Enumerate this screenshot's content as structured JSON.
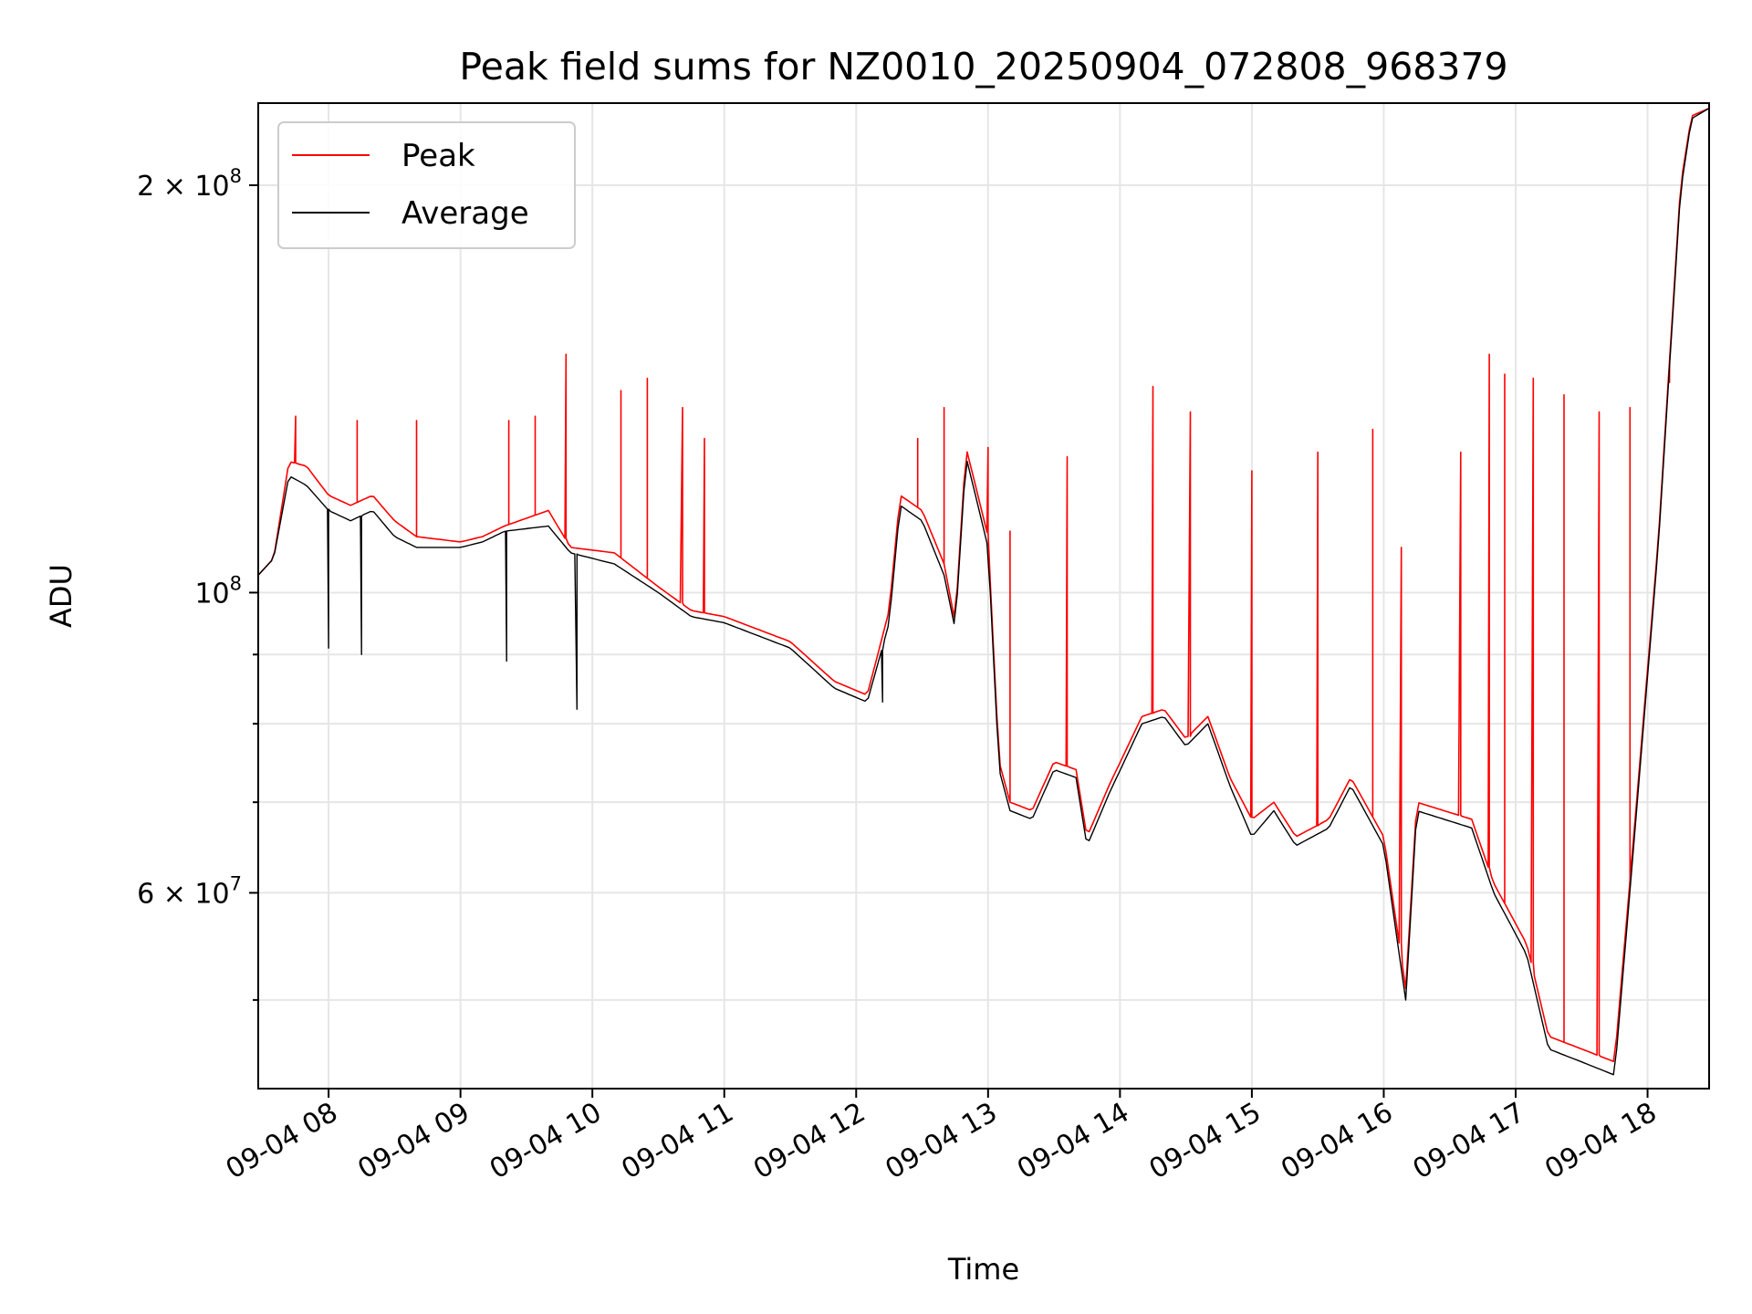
{
  "chart_data": {
    "type": "line",
    "title": "Peak field sums for NZ0010_20250904_072808_968379",
    "xlabel": "Time",
    "ylabel": "ADU",
    "x_scale": "time",
    "y_scale": "log",
    "xlim": [
      "09-04 07:28",
      "09-04 18:28"
    ],
    "ylim": [
      43000000,
      230000000
    ],
    "x_ticks": [
      "09-04 08",
      "09-04 09",
      "09-04 10",
      "09-04 11",
      "09-04 12",
      "09-04 13",
      "09-04 14",
      "09-04 15",
      "09-04 16",
      "09-04 17",
      "09-04 18"
    ],
    "y_tick_labels": [
      {
        "value": 60000000,
        "mantissa": "6",
        "exponent": "7"
      },
      {
        "value": 100000000,
        "mantissa": "",
        "exponent": "8"
      },
      {
        "value": 200000000,
        "mantissa": "2",
        "exponent": "8"
      }
    ],
    "y_minor_ticks": [
      50000000,
      70000000,
      80000000,
      90000000
    ],
    "grid": true,
    "legend_position": "top-left",
    "series": [
      {
        "name": "Peak",
        "color": "#ff0000",
        "baseline_points": [
          [
            "09-04 07:28",
            103000000
          ],
          [
            "09-04 07:35",
            106000000
          ],
          [
            "09-04 07:42",
            125000000
          ],
          [
            "09-04 07:50",
            124000000
          ],
          [
            "09-04 08:00",
            118000000
          ],
          [
            "09-04 08:10",
            116000000
          ],
          [
            "09-04 08:20",
            118000000
          ],
          [
            "09-04 08:30",
            113000000
          ],
          [
            "09-04 08:40",
            110000000
          ],
          [
            "09-04 09:00",
            109000000
          ],
          [
            "09-04 09:10",
            110000000
          ],
          [
            "09-04 09:20",
            112000000
          ],
          [
            "09-04 09:40",
            115000000
          ],
          [
            "09-04 09:50",
            108000000
          ],
          [
            "09-04 10:10",
            107000000
          ],
          [
            "09-04 10:30",
            101000000
          ],
          [
            "09-04 10:45",
            97000000
          ],
          [
            "09-04 11:00",
            96000000
          ],
          [
            "09-04 11:30",
            92000000
          ],
          [
            "09-04 11:50",
            86000000
          ],
          [
            "09-04 12:05",
            84000000
          ],
          [
            "09-04 12:15",
            97000000
          ],
          [
            "09-04 12:20",
            118000000
          ],
          [
            "09-04 12:30",
            115000000
          ],
          [
            "09-04 12:40",
            105000000
          ],
          [
            "09-04 12:45",
            95000000
          ],
          [
            "09-04 12:50",
            128000000
          ],
          [
            "09-04 13:00",
            110000000
          ],
          [
            "09-04 13:05",
            75000000
          ],
          [
            "09-04 13:10",
            70000000
          ],
          [
            "09-04 13:20",
            69000000
          ],
          [
            "09-04 13:30",
            75000000
          ],
          [
            "09-04 13:40",
            74000000
          ],
          [
            "09-04 13:45",
            66000000
          ],
          [
            "09-04 13:55",
            72000000
          ],
          [
            "09-04 14:10",
            81000000
          ],
          [
            "09-04 14:20",
            82000000
          ],
          [
            "09-04 14:30",
            78000000
          ],
          [
            "09-04 14:40",
            81000000
          ],
          [
            "09-04 14:50",
            73000000
          ],
          [
            "09-04 15:00",
            68000000
          ],
          [
            "09-04 15:10",
            70000000
          ],
          [
            "09-04 15:20",
            66000000
          ],
          [
            "09-04 15:35",
            68000000
          ],
          [
            "09-04 15:45",
            73000000
          ],
          [
            "09-04 16:00",
            66000000
          ],
          [
            "09-04 16:10",
            51000000
          ],
          [
            "09-04 16:15",
            70000000
          ],
          [
            "09-04 16:40",
            68000000
          ],
          [
            "09-04 16:50",
            61000000
          ],
          [
            "09-04 17:05",
            55000000
          ],
          [
            "09-04 17:15",
            47000000
          ],
          [
            "09-04 17:30",
            46000000
          ],
          [
            "09-04 17:45",
            45000000
          ],
          [
            "09-04 17:55",
            70000000
          ],
          [
            "09-04 18:05",
            110000000
          ],
          [
            "09-04 18:15",
            200000000
          ],
          [
            "09-04 18:20",
            225000000
          ],
          [
            "09-04 18:28",
            228000000
          ]
        ],
        "spike_peaks": [
          [
            "09-04 07:45",
            135000000
          ],
          [
            "09-04 08:13",
            134000000
          ],
          [
            "09-04 08:40",
            134000000
          ],
          [
            "09-04 09:22",
            134000000
          ],
          [
            "09-04 09:34",
            135000000
          ],
          [
            "09-04 09:48",
            150000000
          ],
          [
            "09-04 10:13",
            141000000
          ],
          [
            "09-04 10:25",
            144000000
          ],
          [
            "09-04 10:41",
            137000000
          ],
          [
            "09-04 10:51",
            130000000
          ],
          [
            "09-04 12:28",
            130000000
          ],
          [
            "09-04 12:40",
            137000000
          ],
          [
            "09-04 13:00",
            128000000
          ],
          [
            "09-04 13:10",
            111000000
          ],
          [
            "09-04 13:36",
            126000000
          ],
          [
            "09-04 14:15",
            142000000
          ],
          [
            "09-04 14:32",
            136000000
          ],
          [
            "09-04 15:00",
            123000000
          ],
          [
            "09-04 15:30",
            127000000
          ],
          [
            "09-04 15:55",
            132000000
          ],
          [
            "09-04 16:08",
            108000000
          ],
          [
            "09-04 16:35",
            127000000
          ],
          [
            "09-04 16:48",
            150000000
          ],
          [
            "09-04 16:55",
            145000000
          ],
          [
            "09-04 17:08",
            144000000
          ],
          [
            "09-04 17:22",
            140000000
          ],
          [
            "09-04 17:38",
            136000000
          ],
          [
            "09-04 17:52",
            137000000
          ],
          [
            "09-04 18:10",
            143000000
          ]
        ]
      },
      {
        "name": "Average",
        "color": "#000000",
        "baseline_points": [
          [
            "09-04 07:28",
            103000000
          ],
          [
            "09-04 07:35",
            106000000
          ],
          [
            "09-04 07:42",
            122000000
          ],
          [
            "09-04 07:50",
            120000000
          ],
          [
            "09-04 08:00",
            115000000
          ],
          [
            "09-04 08:10",
            113000000
          ],
          [
            "09-04 08:20",
            115000000
          ],
          [
            "09-04 08:30",
            110000000
          ],
          [
            "09-04 08:40",
            108000000
          ],
          [
            "09-04 09:00",
            108000000
          ],
          [
            "09-04 09:10",
            109000000
          ],
          [
            "09-04 09:20",
            111000000
          ],
          [
            "09-04 09:40",
            112000000
          ],
          [
            "09-04 09:50",
            107000000
          ],
          [
            "09-04 10:10",
            105000000
          ],
          [
            "09-04 10:30",
            100000000
          ],
          [
            "09-04 10:45",
            96000000
          ],
          [
            "09-04 11:00",
            95000000
          ],
          [
            "09-04 11:30",
            91000000
          ],
          [
            "09-04 11:50",
            85000000
          ],
          [
            "09-04 12:05",
            83000000
          ],
          [
            "09-04 12:15",
            95000000
          ],
          [
            "09-04 12:20",
            116000000
          ],
          [
            "09-04 12:30",
            113000000
          ],
          [
            "09-04 12:40",
            103000000
          ],
          [
            "09-04 12:45",
            94000000
          ],
          [
            "09-04 12:50",
            126000000
          ],
          [
            "09-04 13:00",
            108000000
          ],
          [
            "09-04 13:05",
            74000000
          ],
          [
            "09-04 13:10",
            69000000
          ],
          [
            "09-04 13:20",
            68000000
          ],
          [
            "09-04 13:30",
            74000000
          ],
          [
            "09-04 13:40",
            73000000
          ],
          [
            "09-04 13:45",
            65000000
          ],
          [
            "09-04 13:55",
            71000000
          ],
          [
            "09-04 14:10",
            80000000
          ],
          [
            "09-04 14:20",
            81000000
          ],
          [
            "09-04 14:30",
            77000000
          ],
          [
            "09-04 14:40",
            80000000
          ],
          [
            "09-04 14:50",
            72000000
          ],
          [
            "09-04 15:00",
            66000000
          ],
          [
            "09-04 15:10",
            69000000
          ],
          [
            "09-04 15:20",
            65000000
          ],
          [
            "09-04 15:35",
            67000000
          ],
          [
            "09-04 15:45",
            72000000
          ],
          [
            "09-04 16:00",
            65000000
          ],
          [
            "09-04 16:10",
            50000000
          ],
          [
            "09-04 16:15",
            69000000
          ],
          [
            "09-04 16:40",
            67000000
          ],
          [
            "09-04 16:50",
            60000000
          ],
          [
            "09-04 17:05",
            54000000
          ],
          [
            "09-04 17:15",
            46000000
          ],
          [
            "09-04 17:30",
            45000000
          ],
          [
            "09-04 17:45",
            44000000
          ],
          [
            "09-04 17:55",
            69000000
          ],
          [
            "09-04 18:05",
            109000000
          ],
          [
            "09-04 18:15",
            198000000
          ],
          [
            "09-04 18:20",
            224000000
          ],
          [
            "09-04 18:28",
            228000000
          ]
        ],
        "dip_points": [
          [
            "09-04 08:00",
            91000000
          ],
          [
            "09-04 08:15",
            90000000
          ],
          [
            "09-04 09:21",
            89000000
          ],
          [
            "09-04 09:53",
            82000000
          ],
          [
            "09-04 12:12",
            83000000
          ]
        ]
      }
    ]
  }
}
